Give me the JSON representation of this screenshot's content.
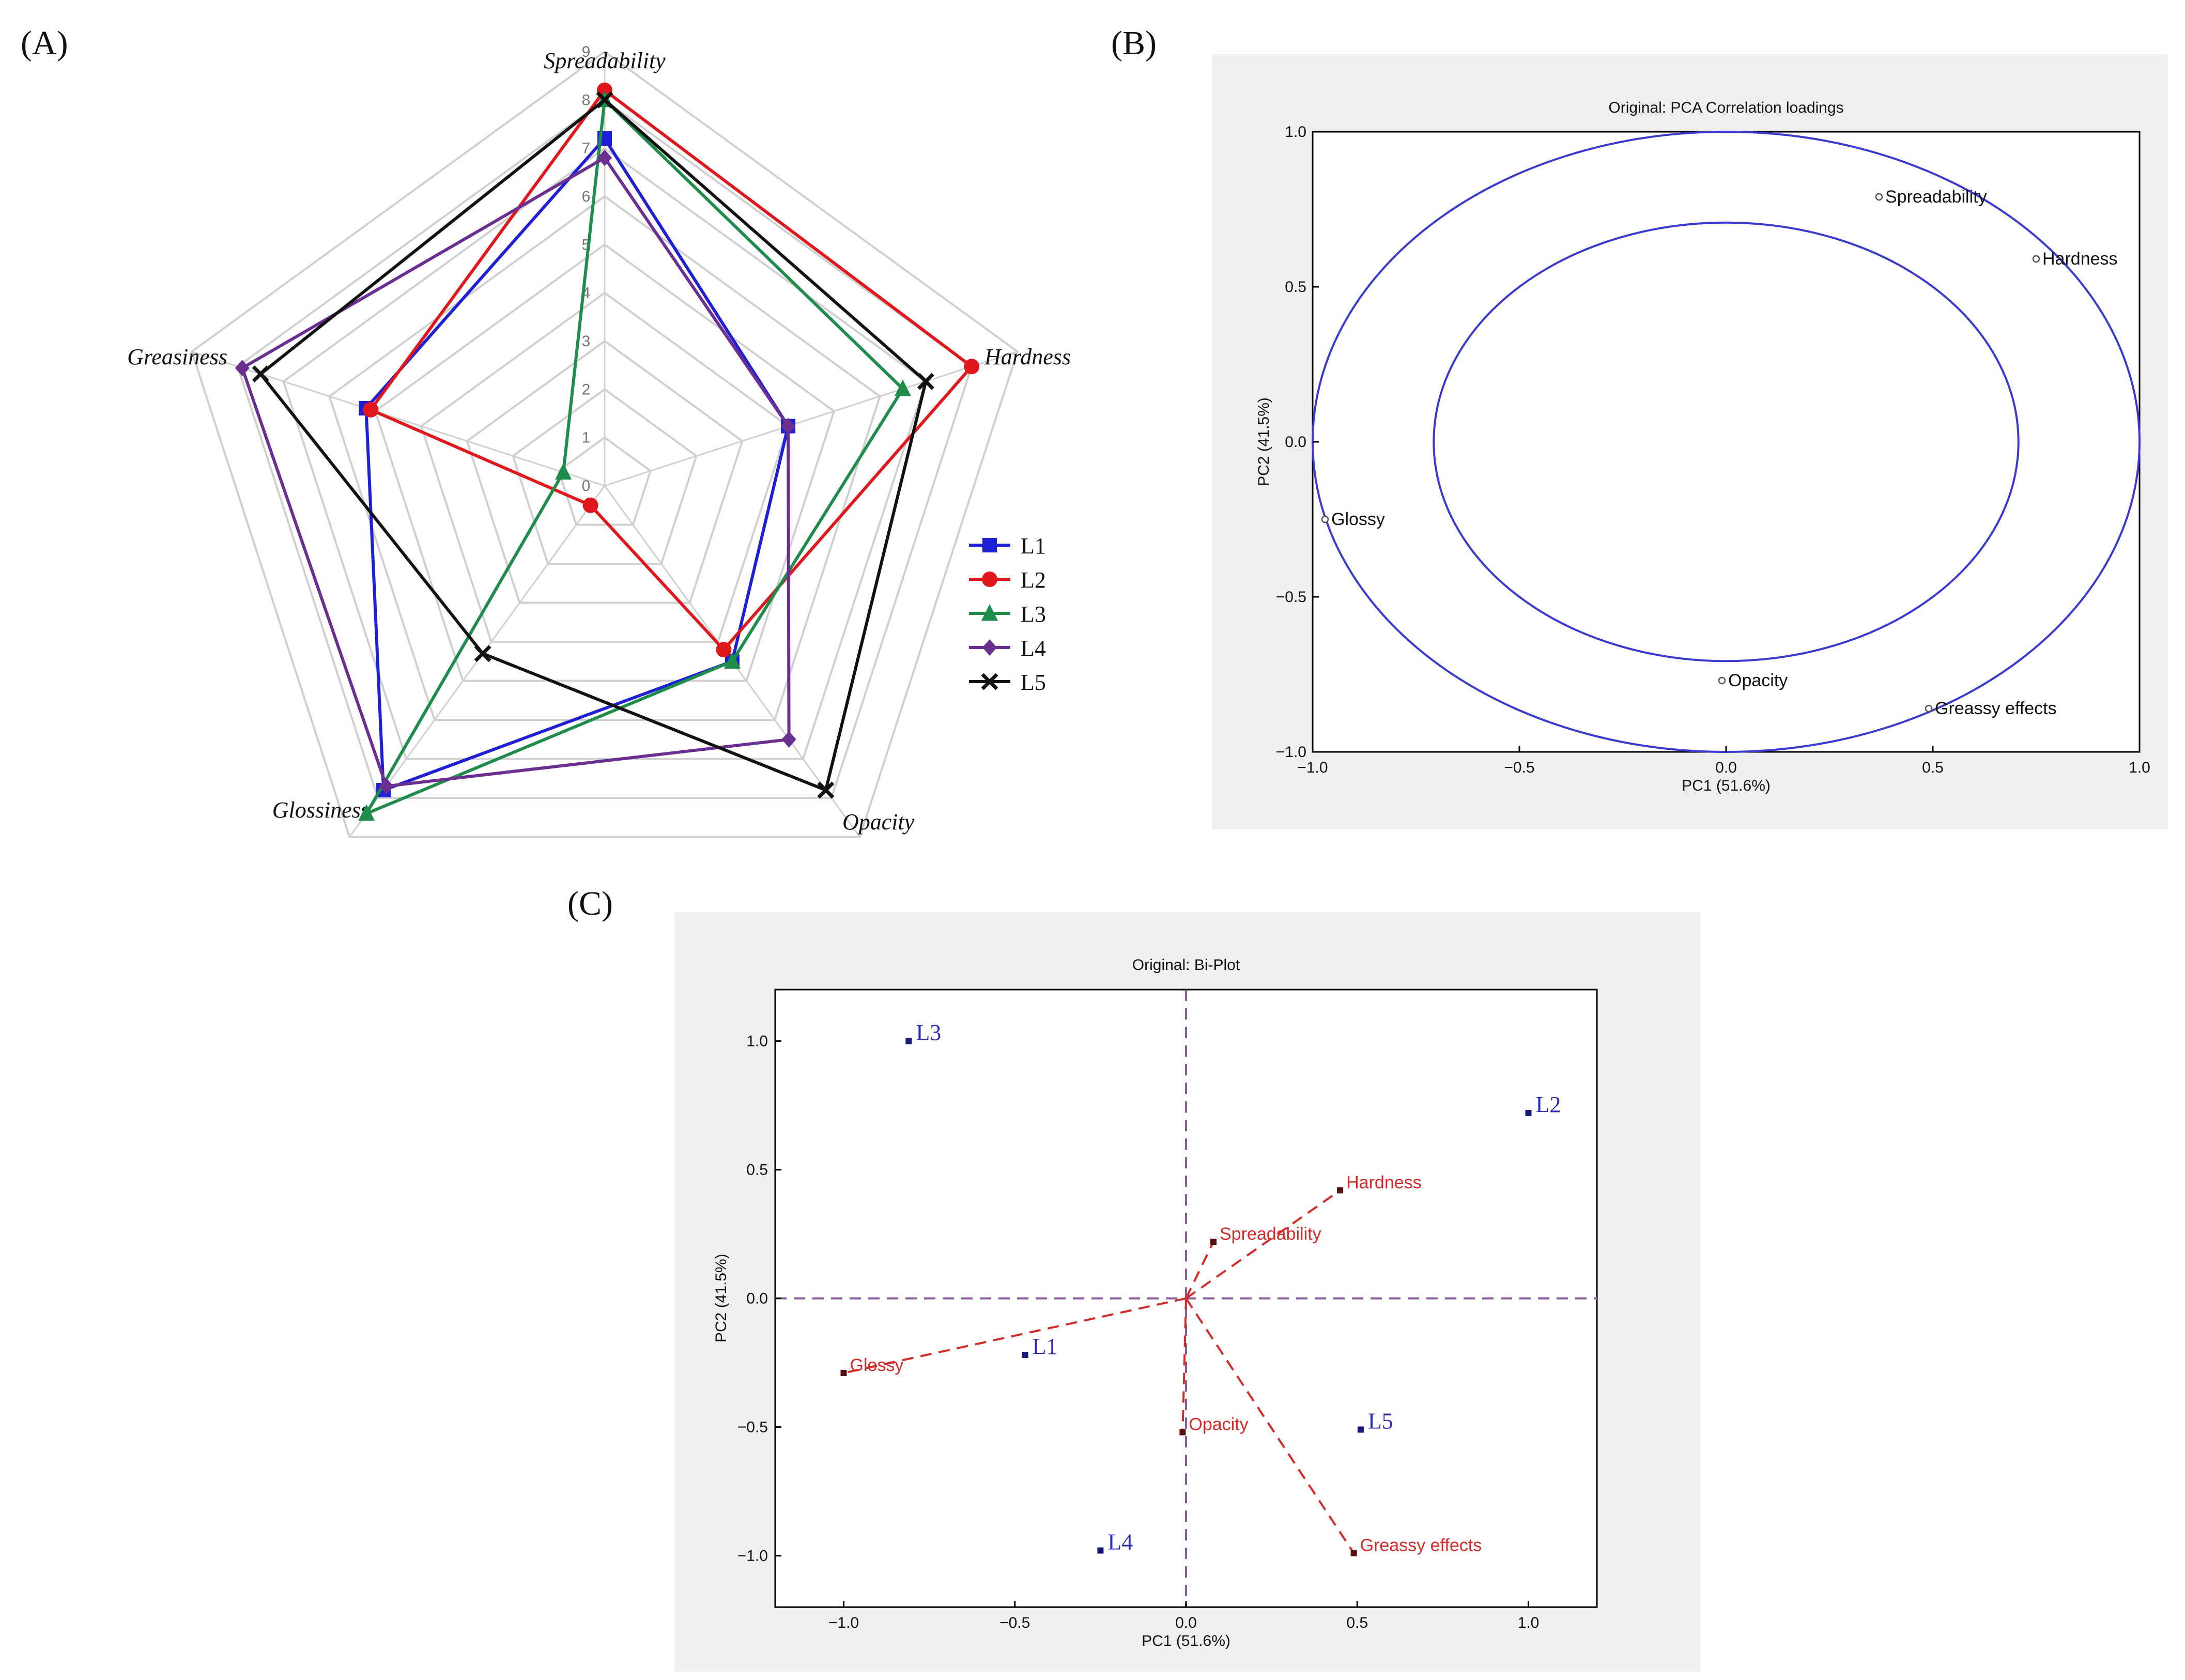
{
  "panel_labels": {
    "a": "(A)",
    "b": "(B)",
    "c": "(C)"
  },
  "colors": {
    "L1": "#1f1fd6",
    "L2": "#e0171c",
    "L3": "#1e8c4b",
    "L4": "#6b2f91",
    "L5": "#111111",
    "circle": "#3a3ad0",
    "bg_panel": "#efefef",
    "dash_axis": "#8a5a9a",
    "loading": "#d32a2a",
    "sample_label": "#2b2bb8",
    "grid": "#d0d0d0"
  },
  "chart_data": [
    {
      "type": "radar",
      "panel": "(A)",
      "axes": [
        "Spreadability",
        "Hardness",
        "Opacity",
        "Glossiness",
        "Greasiness"
      ],
      "scale_ticks": [
        "0",
        "1",
        "2",
        "3",
        "4",
        "5",
        "6",
        "7",
        "8",
        "9"
      ],
      "rmax": 9,
      "series": [
        {
          "name": "L1",
          "marker": "square",
          "values": [
            7.2,
            4.0,
            4.5,
            7.8,
            5.2
          ]
        },
        {
          "name": "L2",
          "marker": "circle",
          "values": [
            8.2,
            8.0,
            4.2,
            0.5,
            5.1
          ]
        },
        {
          "name": "L3",
          "marker": "triangle",
          "values": [
            8.0,
            6.5,
            4.5,
            8.4,
            0.9
          ]
        },
        {
          "name": "L4",
          "marker": "diamond",
          "values": [
            6.8,
            4.0,
            6.5,
            7.7,
            7.9
          ]
        },
        {
          "name": "L5",
          "marker": "x",
          "values": [
            8.0,
            7.0,
            7.8,
            4.3,
            7.5
          ]
        }
      ]
    },
    {
      "type": "scatter",
      "panel": "(B)",
      "title": "Original: PCA Correlation loadings",
      "xlabel": "PC1 (51.6%)",
      "ylabel": "PC2 (41.5%)",
      "xlim": [
        -1.0,
        1.0
      ],
      "ylim": [
        -1.0,
        1.0
      ],
      "xticks": [
        "−1.0",
        "−0.5",
        "0.0",
        "0.5",
        "1.0"
      ],
      "yticks": [
        "−1.0",
        "−0.5",
        "0.0",
        "0.5",
        "1.0"
      ],
      "circles": [
        {
          "radius": 1.0
        },
        {
          "radius": 0.7071
        }
      ],
      "points": [
        {
          "label": "Spreadability",
          "x": 0.37,
          "y": 0.79
        },
        {
          "label": "Hardness",
          "x": 0.75,
          "y": 0.59
        },
        {
          "label": "Glossy",
          "x": -0.97,
          "y": -0.25
        },
        {
          "label": "Opacity",
          "x": -0.01,
          "y": -0.77
        },
        {
          "label": "Greassy effects",
          "x": 0.49,
          "y": -0.86
        }
      ]
    },
    {
      "type": "scatter",
      "panel": "(C)",
      "title": "Original: Bi-Plot",
      "xlabel": "PC1 (51.6%)",
      "ylabel": "PC2 (41.5%)",
      "xlim": [
        -1.2,
        1.2
      ],
      "ylim": [
        -1.2,
        1.2
      ],
      "xticks": [
        "−1.0",
        "−0.5",
        "0.0",
        "0.5",
        "1.0"
      ],
      "yticks": [
        "−1.0",
        "−0.5",
        "0.0",
        "0.5",
        "1.0"
      ],
      "samples": [
        {
          "label": "L1",
          "x": -0.47,
          "y": -0.22
        },
        {
          "label": "L2",
          "x": 1.0,
          "y": 0.72
        },
        {
          "label": "L3",
          "x": -0.81,
          "y": 1.0
        },
        {
          "label": "L4",
          "x": -0.25,
          "y": -0.98
        },
        {
          "label": "L5",
          "x": 0.51,
          "y": -0.51
        }
      ],
      "loadings": [
        {
          "label": "Hardness",
          "x": 0.45,
          "y": 0.42
        },
        {
          "label": "Spreadability",
          "x": 0.08,
          "y": 0.22
        },
        {
          "label": "Glossy",
          "x": -1.0,
          "y": -0.29
        },
        {
          "label": "Opacity",
          "x": -0.01,
          "y": -0.52
        },
        {
          "label": "Greassy effects",
          "x": 0.49,
          "y": -0.99
        }
      ]
    }
  ]
}
